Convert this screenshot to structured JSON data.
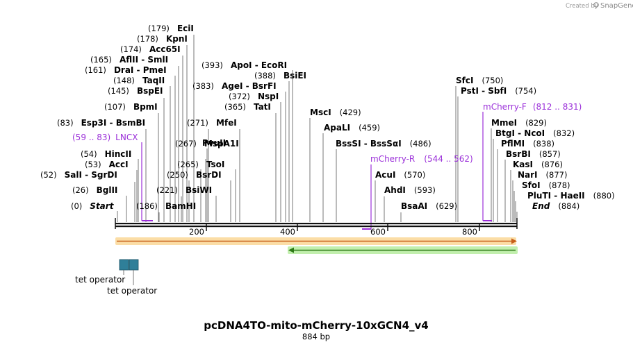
{
  "branding": {
    "created_by": "Created by",
    "app_name": "SnapGene"
  },
  "map": {
    "name": "pcDNA4TO-mito-mCherry-10xGCN4_v4",
    "length_label": "884 bp",
    "length": 884,
    "ticks": [
      {
        "label": "200",
        "pos": 200
      },
      {
        "label": "400",
        "pos": 400
      },
      {
        "label": "600",
        "pos": 600
      },
      {
        "label": "800",
        "pos": 800
      }
    ]
  },
  "sites": [
    {
      "pos": "(0)",
      "names": [
        "Start"
      ],
      "italic": true,
      "bp": 0
    },
    {
      "pos": "(26)",
      "names": [
        "BglII"
      ],
      "bp": 26
    },
    {
      "pos": "(52)",
      "names": [
        "SalI",
        "SgrDI"
      ],
      "bp": 52
    },
    {
      "pos": "(53)",
      "names": [
        "AccI"
      ],
      "bp": 53
    },
    {
      "pos": "(54)",
      "names": [
        "HincII"
      ],
      "bp": 54
    },
    {
      "pos": "(83)",
      "names": [
        "Esp3I",
        "BsmBI"
      ],
      "bp": 83
    },
    {
      "pos": "(107)",
      "names": [
        "BpmI"
      ],
      "bp": 107
    },
    {
      "pos": "(145)",
      "names": [
        "BspEI"
      ],
      "bp": 145
    },
    {
      "pos": "(148)",
      "names": [
        "TaqII"
      ],
      "bp": 148
    },
    {
      "pos": "(161)",
      "names": [
        "DraI",
        "PmeI"
      ],
      "bp": 161
    },
    {
      "pos": "(165)",
      "names": [
        "AflII",
        "SmlI"
      ],
      "bp": 165
    },
    {
      "pos": "(174)",
      "names": [
        "Acc65I"
      ],
      "bp": 174
    },
    {
      "pos": "(178)",
      "names": [
        "KpnI"
      ],
      "bp": 178
    },
    {
      "pos": "(179)",
      "names": [
        "EciI"
      ],
      "bp": 179
    },
    {
      "pos": "(186)",
      "names": [
        "BamHI"
      ],
      "bp": 186
    },
    {
      "pos": "(221)",
      "names": [
        "BsiWI"
      ],
      "bp": 221
    },
    {
      "pos": "(250)",
      "names": [
        "BsrDI"
      ],
      "bp": 250
    },
    {
      "pos": "(265)",
      "names": [
        "TsoI"
      ],
      "bp": 265
    },
    {
      "pos": "(267)",
      "names": [
        "MspA1I"
      ],
      "bp": 267
    },
    {
      "pos": "",
      "names": [
        "PvuII"
      ],
      "bp": 267
    },
    {
      "pos": "(271)",
      "names": [
        "MfeI"
      ],
      "bp": 271
    },
    {
      "pos": "(365)",
      "names": [
        "TatI"
      ],
      "bp": 365
    },
    {
      "pos": "(372)",
      "names": [
        "NspI"
      ],
      "bp": 372
    },
    {
      "pos": "(383)",
      "names": [
        "AgeI",
        "BsrFI"
      ],
      "bp": 383
    },
    {
      "pos": "(388)",
      "names": [
        "BsiEI"
      ],
      "bp": 388
    },
    {
      "pos": "(393)",
      "names": [
        "ApoI",
        "EcoRI"
      ],
      "bp": 393
    },
    {
      "pos": "(429)",
      "names": [
        "MscI"
      ],
      "bp": 429
    },
    {
      "pos": "(459)",
      "names": [
        "ApaLI"
      ],
      "bp": 459
    },
    {
      "pos": "(486)",
      "names": [
        "BssSI",
        "BssSαI"
      ],
      "bp": 486
    },
    {
      "pos": "(570)",
      "names": [
        "AcuI"
      ],
      "bp": 570
    },
    {
      "pos": "(593)",
      "names": [
        "AhdI"
      ],
      "bp": 593
    },
    {
      "pos": "(629)",
      "names": [
        "BsaAI"
      ],
      "bp": 629
    },
    {
      "pos": "(750)",
      "names": [
        "SfcI"
      ],
      "bp": 750
    },
    {
      "pos": "(754)",
      "names": [
        "PstI",
        "SbfI"
      ],
      "bp": 754
    },
    {
      "pos": "(829)",
      "names": [
        "MmeI"
      ],
      "bp": 829
    },
    {
      "pos": "(832)",
      "names": [
        "BtgI",
        "NcoI"
      ],
      "bp": 832
    },
    {
      "pos": "(838)",
      "names": [
        "PflMI"
      ],
      "bp": 838
    },
    {
      "pos": "(857)",
      "names": [
        "BsrBI"
      ],
      "bp": 857
    },
    {
      "pos": "(876)",
      "names": [
        "KasI"
      ],
      "bp": 876
    },
    {
      "pos": "(877)",
      "names": [
        "NarI"
      ],
      "bp": 877
    },
    {
      "pos": "(878)",
      "names": [
        "SfoI"
      ],
      "bp": 878
    },
    {
      "pos": "(880)",
      "names": [
        "PluTI",
        "HaeII"
      ],
      "bp": 880
    },
    {
      "pos": "(884)",
      "names": [
        "End"
      ],
      "italic": true,
      "bp": 884
    }
  ],
  "primers": [
    {
      "name": "LNCX",
      "range": "(59 .. 83)"
    },
    {
      "name": "mCherry-R",
      "range": "(544 .. 562)"
    },
    {
      "name": "mCherry-F",
      "range": "(812 .. 831)"
    }
  ],
  "features": [
    {
      "name": "tet operator",
      "color": "#2f7f99"
    },
    {
      "name": "tet operator",
      "color": "#2f7f99"
    }
  ],
  "colors": {
    "orange_feature": "#f5a623",
    "green_feature": "#3c9c1f",
    "primer": "#9b30d9",
    "tet_operator": "#2f7f99"
  }
}
